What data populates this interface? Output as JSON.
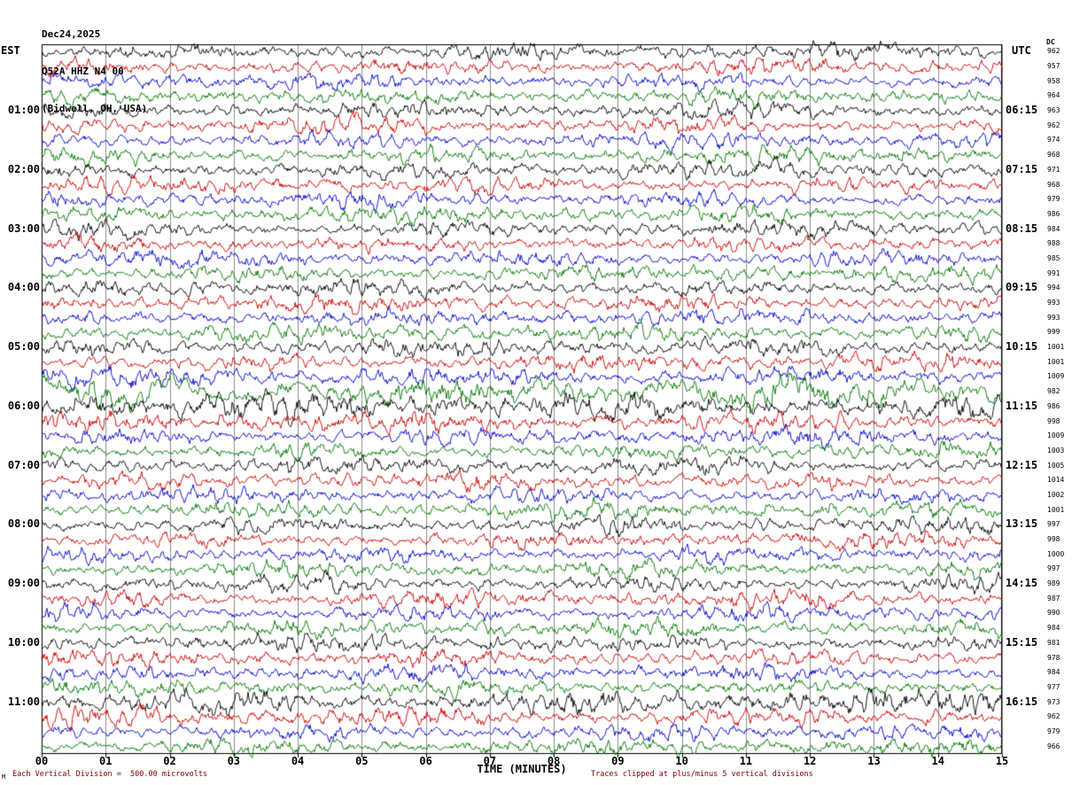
{
  "header": {
    "line1": "Dec24,2025",
    "line2": "Q52A HHZ N4 00",
    "line3": "(Bidwell, OH, USA)"
  },
  "axes": {
    "left_title": "EST",
    "right_title": "UTC",
    "dc_title": "DC",
    "x_title": "TIME (MINUTES)",
    "x_ticks": [
      "00",
      "01",
      "02",
      "03",
      "04",
      "05",
      "06",
      "07",
      "08",
      "09",
      "10",
      "11",
      "12",
      "13",
      "14",
      "15"
    ]
  },
  "footer": {
    "corner": "M",
    "left_note": "Each Vertical Division =  500.00 microvolts",
    "right_note": "Traces clipped at plus/minus 5 vertical divisions"
  },
  "chart_data": {
    "type": "line",
    "subtype": "seismogram-helicorder",
    "title": "Q52A HHZ N4 00 (Bidwell, OH, USA) Dec24,2025",
    "station": "Q52A HHZ N4 00",
    "location": "Bidwell, OH, USA",
    "date": "Dec24,2025",
    "xlabel": "TIME (MINUTES)",
    "x_range_minutes": [
      0,
      15
    ],
    "minutes_per_line": 15,
    "lines_per_hour": 4,
    "left_time_zone": "EST",
    "right_time_zone": "UTC",
    "vertical_division_microvolts": 500.0,
    "clip_divisions": 5,
    "grid": "vertical-minute-lines",
    "trace_colors": {
      "black": "#000000",
      "red": "#cc0000",
      "blue": "#0000cc",
      "green": "#007700"
    },
    "rows": [
      {
        "color": "black",
        "dc": 962
      },
      {
        "color": "red",
        "dc": 957
      },
      {
        "color": "blue",
        "dc": 958
      },
      {
        "color": "green",
        "dc": 964
      },
      {
        "color": "black",
        "dc": 963,
        "est": "01:00",
        "utc": "06:15"
      },
      {
        "color": "red",
        "dc": 962
      },
      {
        "color": "blue",
        "dc": 974
      },
      {
        "color": "green",
        "dc": 968
      },
      {
        "color": "black",
        "dc": 971,
        "est": "02:00",
        "utc": "07:15"
      },
      {
        "color": "red",
        "dc": 968
      },
      {
        "color": "blue",
        "dc": 979
      },
      {
        "color": "green",
        "dc": 986
      },
      {
        "color": "black",
        "dc": 984,
        "est": "03:00",
        "utc": "08:15"
      },
      {
        "color": "red",
        "dc": 988
      },
      {
        "color": "blue",
        "dc": 985
      },
      {
        "color": "green",
        "dc": 991
      },
      {
        "color": "black",
        "dc": 994,
        "est": "04:00",
        "utc": "09:15"
      },
      {
        "color": "red",
        "dc": 993
      },
      {
        "color": "blue",
        "dc": 993
      },
      {
        "color": "green",
        "dc": 999
      },
      {
        "color": "black",
        "dc": 1001,
        "est": "05:00",
        "utc": "10:15"
      },
      {
        "color": "red",
        "dc": 1001
      },
      {
        "color": "blue",
        "dc": 1009,
        "amp": 1.15
      },
      {
        "color": "green",
        "dc": 982,
        "amp": 1.5,
        "lf": true
      },
      {
        "color": "black",
        "dc": 986,
        "est": "06:00",
        "utc": "11:15",
        "amp": 1.6
      },
      {
        "color": "red",
        "dc": 998,
        "amp": 1.25
      },
      {
        "color": "blue",
        "dc": 1009
      },
      {
        "color": "green",
        "dc": 1003
      },
      {
        "color": "black",
        "dc": 1005,
        "est": "07:00",
        "utc": "12:15"
      },
      {
        "color": "red",
        "dc": 1014
      },
      {
        "color": "blue",
        "dc": 1002
      },
      {
        "color": "green",
        "dc": 1001
      },
      {
        "color": "black",
        "dc": 997,
        "est": "08:00",
        "utc": "13:15"
      },
      {
        "color": "red",
        "dc": 998
      },
      {
        "color": "blue",
        "dc": 1000
      },
      {
        "color": "green",
        "dc": 997
      },
      {
        "color": "black",
        "dc": 989,
        "est": "09:00",
        "utc": "14:15"
      },
      {
        "color": "red",
        "dc": 987
      },
      {
        "color": "blue",
        "dc": 990
      },
      {
        "color": "green",
        "dc": 984
      },
      {
        "color": "black",
        "dc": 981,
        "est": "10:00",
        "utc": "15:15"
      },
      {
        "color": "red",
        "dc": 978
      },
      {
        "color": "blue",
        "dc": 984
      },
      {
        "color": "green",
        "dc": 977
      },
      {
        "color": "black",
        "dc": 973,
        "est": "11:00",
        "utc": "16:15",
        "amp": 1.45
      },
      {
        "color": "red",
        "dc": 962,
        "amp": 1.15
      },
      {
        "color": "blue",
        "dc": 979
      },
      {
        "color": "green",
        "dc": 966
      }
    ]
  }
}
